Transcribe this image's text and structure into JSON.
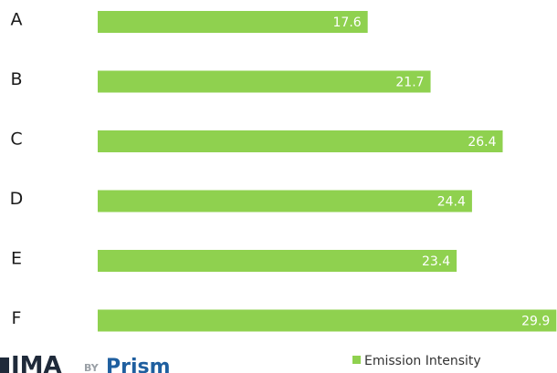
{
  "chart_data": {
    "type": "bar",
    "orientation": "horizontal",
    "title": "",
    "xlabel": "",
    "ylabel": "",
    "categories": [
      "A",
      "B",
      "C",
      "D",
      "E",
      "F"
    ],
    "series": [
      {
        "name": "Emission Intensity",
        "values": [
          17.6,
          21.7,
          26.4,
          24.4,
          23.4,
          29.9
        ],
        "color": "#8fd14f"
      }
    ],
    "xlim": [
      0,
      30
    ],
    "grid": false,
    "data_labels": true,
    "legend_position": "bottom-right"
  },
  "logo": {
    "mark": "IMA",
    "by": "BY",
    "brand": "Prism"
  },
  "colors": {
    "bar": "#8fd14f",
    "logo_dark": "#1f2a3a",
    "logo_by": "#9aa0a6",
    "logo_brand": "#1f5f9f"
  }
}
